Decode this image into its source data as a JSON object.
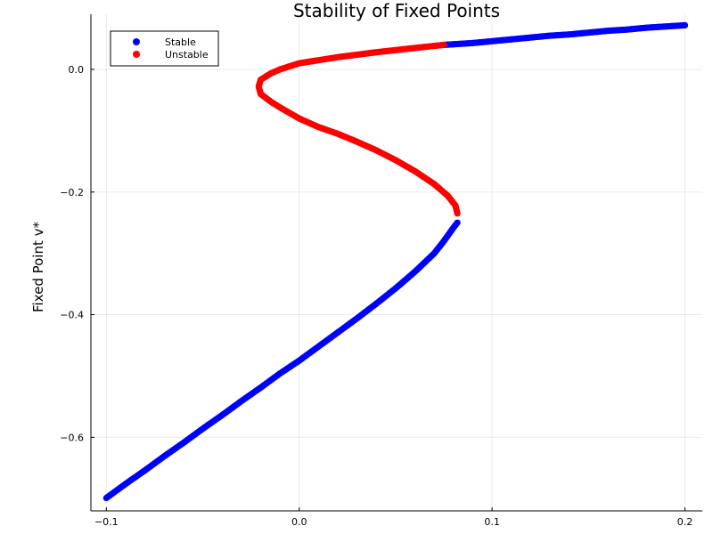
{
  "chart_data": {
    "type": "scatter",
    "title": "Stability of Fixed Points",
    "xlabel": "",
    "ylabel": "Fixed Point v*",
    "xlim": [
      -0.108,
      0.209
    ],
    "ylim": [
      -0.72,
      0.09
    ],
    "x_ticks": [
      {
        "value": -0.1,
        "label": "−0.1"
      },
      {
        "value": 0.0,
        "label": "0.0"
      },
      {
        "value": 0.1,
        "label": "0.1"
      },
      {
        "value": 0.2,
        "label": "0.2"
      }
    ],
    "y_ticks": [
      {
        "value": 0.0,
        "label": "0.0"
      },
      {
        "value": -0.2,
        "label": "−0.2"
      },
      {
        "value": -0.4,
        "label": "−0.4"
      },
      {
        "value": -0.6,
        "label": "−0.6"
      }
    ],
    "grid": true,
    "legend_position": "top-left",
    "series": [
      {
        "name": "Stable",
        "color": "#0000ff",
        "points": [
          [
            -0.1,
            -0.699
          ],
          [
            -0.09,
            -0.676
          ],
          [
            -0.08,
            -0.654
          ],
          [
            -0.07,
            -0.631
          ],
          [
            -0.06,
            -0.609
          ],
          [
            -0.05,
            -0.586
          ],
          [
            -0.04,
            -0.564
          ],
          [
            -0.03,
            -0.541
          ],
          [
            -0.02,
            -0.519
          ],
          [
            -0.01,
            -0.496
          ],
          [
            0.0,
            -0.475
          ],
          [
            0.01,
            -0.452
          ],
          [
            0.02,
            -0.429
          ],
          [
            0.03,
            -0.406
          ],
          [
            0.04,
            -0.382
          ],
          [
            0.05,
            -0.357
          ],
          [
            0.06,
            -0.33
          ],
          [
            0.07,
            -0.3
          ],
          [
            0.075,
            -0.28
          ],
          [
            0.08,
            -0.258
          ],
          [
            0.082,
            -0.25
          ],
          [
            0.075,
            0.04
          ],
          [
            0.09,
            0.043
          ],
          [
            0.1,
            0.046
          ],
          [
            0.11,
            0.049
          ],
          [
            0.12,
            0.052
          ],
          [
            0.13,
            0.055
          ],
          [
            0.14,
            0.057
          ],
          [
            0.15,
            0.06
          ],
          [
            0.16,
            0.063
          ],
          [
            0.17,
            0.065
          ],
          [
            0.18,
            0.068
          ],
          [
            0.19,
            0.07
          ],
          [
            0.2,
            0.072
          ]
        ]
      },
      {
        "name": "Unstable",
        "color": "#ff0000",
        "points": [
          [
            0.075,
            0.04
          ],
          [
            0.06,
            0.035
          ],
          [
            0.04,
            0.028
          ],
          [
            0.02,
            0.02
          ],
          [
            0.01,
            0.015
          ],
          [
            0.0,
            0.01
          ],
          [
            -0.01,
            0.0
          ],
          [
            -0.015,
            -0.007
          ],
          [
            -0.02,
            -0.017
          ],
          [
            -0.021,
            -0.028
          ],
          [
            -0.02,
            -0.04
          ],
          [
            -0.015,
            -0.052
          ],
          [
            -0.01,
            -0.062
          ],
          [
            0.0,
            -0.08
          ],
          [
            0.01,
            -0.094
          ],
          [
            0.02,
            -0.105
          ],
          [
            0.03,
            -0.118
          ],
          [
            0.04,
            -0.132
          ],
          [
            0.05,
            -0.148
          ],
          [
            0.06,
            -0.166
          ],
          [
            0.07,
            -0.187
          ],
          [
            0.077,
            -0.206
          ],
          [
            0.081,
            -0.222
          ],
          [
            0.082,
            -0.235
          ]
        ]
      }
    ]
  }
}
